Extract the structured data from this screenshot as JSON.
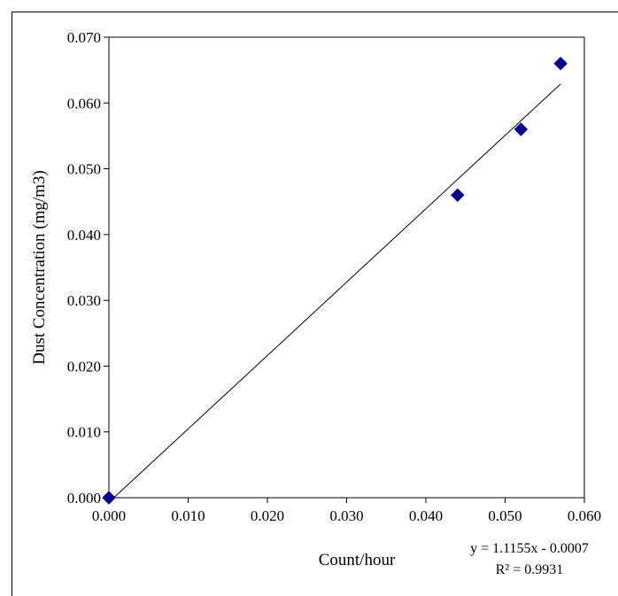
{
  "chart_data": {
    "type": "scatter",
    "title": "",
    "xlabel": "Count/hour",
    "ylabel": "Dust Concentration (mg/m3)",
    "xlim": [
      0.0,
      0.06
    ],
    "ylim": [
      0.0,
      0.07
    ],
    "x_ticks": [
      "0.000",
      "0.010",
      "0.020",
      "0.030",
      "0.040",
      "0.050",
      "0.060"
    ],
    "y_ticks": [
      "0.000",
      "0.010",
      "0.020",
      "0.030",
      "0.040",
      "0.050",
      "0.060",
      "0.070"
    ],
    "grid": false,
    "legend": false,
    "marker": "diamond",
    "marker_color": "#00008B",
    "series": [
      {
        "points": [
          {
            "x": 0.0,
            "y": 0.0
          },
          {
            "x": 0.044,
            "y": 0.046
          },
          {
            "x": 0.052,
            "y": 0.056
          },
          {
            "x": 0.057,
            "y": 0.066
          }
        ]
      }
    ],
    "trendline": {
      "type": "linear",
      "slope": 1.1155,
      "intercept": -0.0007,
      "x_range": [
        0.0,
        0.057
      ],
      "equation": "y = 1.1155x - 0.0007",
      "r_squared": "R² = 0.9931"
    }
  }
}
